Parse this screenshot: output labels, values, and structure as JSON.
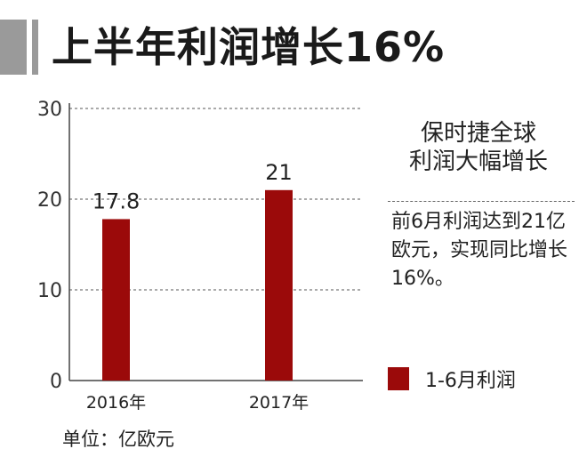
{
  "title": "上半年利润增长16%",
  "side_panel": {
    "heading_lines": [
      "保时捷全球",
      "利润大幅增长"
    ],
    "body": "前6月利润达到21亿欧元，实现同比增长16%。"
  },
  "unit_note": "单位：亿欧元",
  "colors": {
    "bar": "#9b0a0a",
    "header_accent": "#9a9a9a"
  },
  "chart_data": {
    "type": "bar",
    "categories": [
      "2016年",
      "2017年"
    ],
    "series": [
      {
        "name": "1-6月利润",
        "values": [
          17.8,
          21
        ]
      }
    ],
    "data_labels": [
      "17.8",
      "21"
    ],
    "yticks": [
      0,
      10,
      20,
      30
    ],
    "ylim": [
      0,
      30
    ],
    "grid": true,
    "legend_position": "right"
  }
}
